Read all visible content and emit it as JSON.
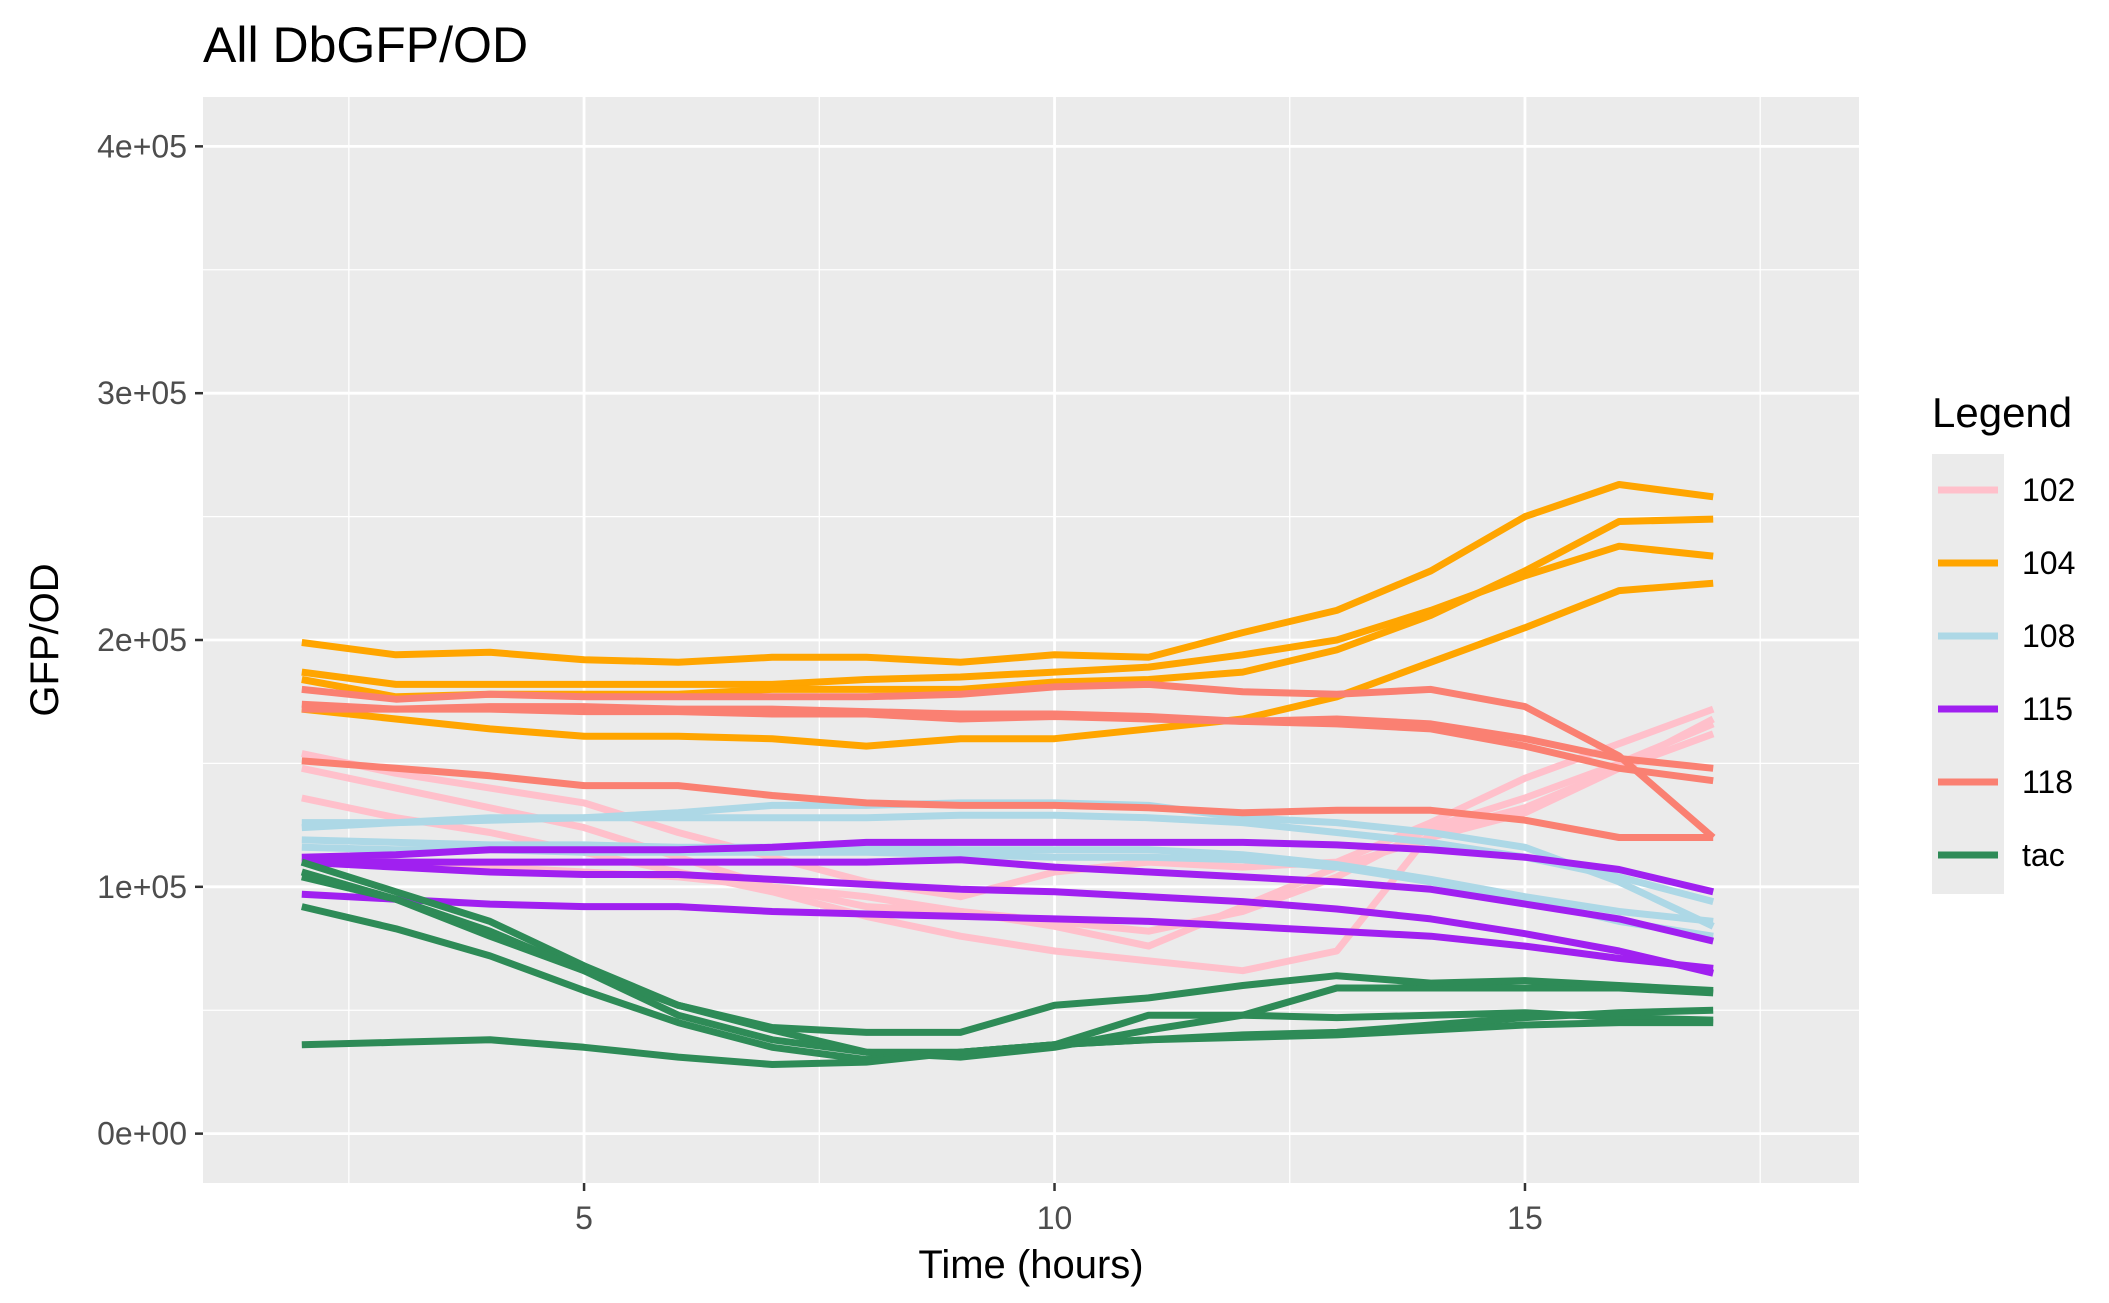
{
  "chart_data": {
    "type": "line",
    "title": "All DbGFP/OD",
    "xlabel": "Time (hours)",
    "ylabel": "GFP/OD",
    "xlim": [
      0.95,
      18.55
    ],
    "ylim": [
      -20000,
      420000
    ],
    "x_ticks": [
      5,
      10,
      15
    ],
    "x_tick_labels": [
      "5",
      "10",
      "15"
    ],
    "y_ticks": [
      0,
      100000,
      200000,
      300000,
      400000
    ],
    "y_tick_labels": [
      "0e+00",
      "1e+05",
      "2e+05",
      "3e+05",
      "4e+05"
    ],
    "grid": true,
    "legend": {
      "title": "Legend",
      "position": "right",
      "items": [
        {
          "label": "102",
          "color": "#ffc0cb"
        },
        {
          "label": "104",
          "color": "#ffa500"
        },
        {
          "label": "108",
          "color": "#add8e6"
        },
        {
          "label": "115",
          "color": "#a020f0"
        },
        {
          "label": "118",
          "color": "#fa8072"
        },
        {
          "label": "tac",
          "color": "#2e8b57"
        }
      ]
    },
    "x": [
      2,
      3,
      4,
      5,
      6,
      7,
      8,
      9,
      10,
      11,
      12,
      13,
      14,
      15,
      16,
      17
    ],
    "series": [
      {
        "name": "102",
        "color": "#ffc0cb",
        "values": [
          154000,
          146000,
          140000,
          134000,
          122000,
          112000,
          102000,
          96000,
          106000,
          110000,
          108000,
          110000,
          126000,
          144000,
          158000,
          172000
        ]
      },
      {
        "name": "102",
        "color": "#ffc0cb",
        "values": [
          148000,
          140000,
          132000,
          124000,
          112000,
          100000,
          92000,
          90000,
          86000,
          82000,
          90000,
          104000,
          124000,
          136000,
          150000,
          166000
        ]
      },
      {
        "name": "102",
        "color": "#ffc0cb",
        "values": [
          136000,
          128000,
          122000,
          114000,
          106000,
          98000,
          88000,
          80000,
          74000,
          70000,
          66000,
          74000,
          122000,
          132000,
          148000,
          162000
        ]
      },
      {
        "name": "102",
        "color": "#ffc0cb",
        "values": [
          112000,
          110000,
          108000,
          106000,
          104000,
          100000,
          96000,
          90000,
          84000,
          76000,
          92000,
          108000,
          120000,
          130000,
          148000,
          168000
        ]
      },
      {
        "name": "104",
        "color": "#ffa500",
        "values": [
          199000,
          194000,
          195000,
          192000,
          191000,
          193000,
          193000,
          191000,
          194000,
          193000,
          203000,
          212000,
          228000,
          250000,
          263000,
          258000
        ]
      },
      {
        "name": "104",
        "color": "#ffa500",
        "values": [
          187000,
          182000,
          182000,
          182000,
          182000,
          182000,
          184000,
          185000,
          187000,
          189000,
          194000,
          200000,
          212000,
          226000,
          238000,
          234000
        ]
      },
      {
        "name": "104",
        "color": "#ffa500",
        "values": [
          184000,
          177000,
          178000,
          178000,
          178000,
          180000,
          180000,
          180000,
          183000,
          184000,
          187000,
          196000,
          210000,
          228000,
          248000,
          249000
        ]
      },
      {
        "name": "104",
        "color": "#ffa500",
        "values": [
          172000,
          168000,
          164000,
          161000,
          161000,
          160000,
          157000,
          160000,
          160000,
          164000,
          168000,
          177000,
          191000,
          205000,
          220000,
          223000
        ]
      },
      {
        "name": "108",
        "color": "#add8e6",
        "values": [
          126000,
          126000,
          127000,
          128000,
          130000,
          133000,
          133000,
          134000,
          134000,
          133000,
          128000,
          126000,
          122000,
          116000,
          102000,
          84000
        ]
      },
      {
        "name": "108",
        "color": "#add8e6",
        "values": [
          119000,
          118000,
          117000,
          117000,
          116000,
          116000,
          116000,
          115000,
          115000,
          115000,
          113000,
          109000,
          103000,
          96000,
          90000,
          86000
        ]
      },
      {
        "name": "108",
        "color": "#add8e6",
        "values": [
          124000,
          126000,
          128000,
          128000,
          128000,
          128000,
          128000,
          129000,
          129000,
          128000,
          126000,
          122000,
          118000,
          112000,
          104000,
          94000
        ]
      },
      {
        "name": "108",
        "color": "#add8e6",
        "values": [
          116000,
          115000,
          115000,
          114000,
          114000,
          114000,
          114000,
          113000,
          112000,
          112000,
          111000,
          108000,
          102000,
          95000,
          86000,
          80000
        ]
      },
      {
        "name": "115",
        "color": "#a020f0",
        "values": [
          112000,
          113000,
          115000,
          115000,
          115000,
          116000,
          118000,
          118000,
          118000,
          118000,
          118000,
          117000,
          115000,
          112000,
          107000,
          98000
        ]
      },
      {
        "name": "115",
        "color": "#a020f0",
        "values": [
          110000,
          110000,
          110000,
          110000,
          110000,
          110000,
          110000,
          111000,
          108000,
          106000,
          104000,
          102000,
          99000,
          93000,
          87000,
          78000
        ]
      },
      {
        "name": "115",
        "color": "#a020f0",
        "values": [
          110000,
          108000,
          106000,
          105000,
          105000,
          103000,
          101000,
          99000,
          98000,
          96000,
          94000,
          91000,
          87000,
          81000,
          74000,
          65000
        ]
      },
      {
        "name": "115",
        "color": "#a020f0",
        "values": [
          97000,
          95000,
          93000,
          92000,
          92000,
          90000,
          89000,
          88000,
          87000,
          86000,
          84000,
          82000,
          80000,
          76000,
          71000,
          67000
        ]
      },
      {
        "name": "118",
        "color": "#fa8072",
        "values": [
          180000,
          176000,
          178000,
          177000,
          177000,
          177000,
          177000,
          178000,
          181000,
          182000,
          179000,
          178000,
          180000,
          173000,
          153000,
          120000
        ]
      },
      {
        "name": "118",
        "color": "#fa8072",
        "values": [
          174000,
          172000,
          172000,
          171000,
          171000,
          170000,
          170000,
          168000,
          169000,
          168000,
          167000,
          168000,
          166000,
          160000,
          152000,
          148000
        ]
      },
      {
        "name": "118",
        "color": "#fa8072",
        "values": [
          172000,
          172000,
          173000,
          173000,
          172000,
          172000,
          171000,
          170000,
          170000,
          169000,
          167000,
          166000,
          164000,
          157000,
          148000,
          143000
        ]
      },
      {
        "name": "118",
        "color": "#fa8072",
        "values": [
          151000,
          148000,
          145000,
          141000,
          141000,
          137000,
          134000,
          133000,
          133000,
          132000,
          130000,
          131000,
          131000,
          127000,
          120000,
          120000
        ]
      },
      {
        "name": "tac",
        "color": "#2e8b57",
        "values": [
          110000,
          98000,
          86000,
          68000,
          52000,
          42000,
          33000,
          31000,
          35000,
          42000,
          48000,
          59000,
          59000,
          59000,
          59000,
          57000
        ]
      },
      {
        "name": "tac",
        "color": "#2e8b57",
        "values": [
          106000,
          95000,
          80000,
          66000,
          48000,
          38000,
          33000,
          33000,
          36000,
          48000,
          48000,
          47000,
          48000,
          49000,
          47000,
          46000
        ]
      },
      {
        "name": "tac",
        "color": "#2e8b57",
        "values": [
          92000,
          83000,
          72000,
          58000,
          45000,
          35000,
          30000,
          33000,
          36000,
          38000,
          39000,
          40000,
          42000,
          44000,
          45000,
          45000
        ]
      },
      {
        "name": "tac",
        "color": "#2e8b57",
        "values": [
          36000,
          37000,
          38000,
          35000,
          31000,
          28000,
          29000,
          33000,
          36000,
          38000,
          40000,
          41000,
          44000,
          47000,
          49000,
          50000
        ]
      },
      {
        "name": "tac",
        "color": "#2e8b57",
        "values": [
          104000,
          95000,
          82000,
          66000,
          52000,
          43000,
          41000,
          41000,
          52000,
          55000,
          60000,
          64000,
          61000,
          62000,
          60000,
          58000
        ]
      }
    ]
  }
}
